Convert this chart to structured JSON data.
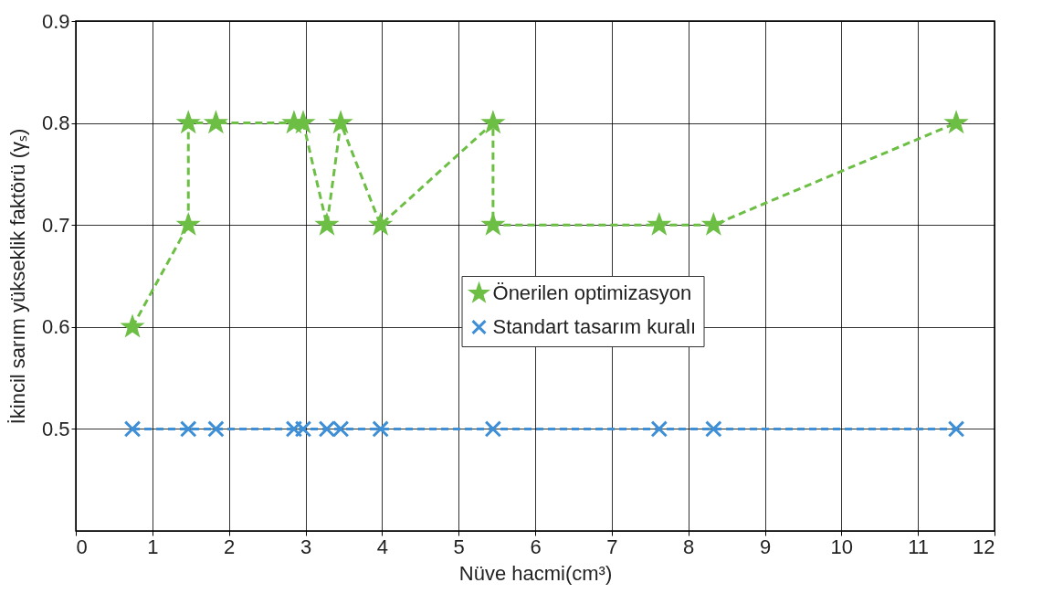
{
  "chart_data": {
    "type": "line",
    "xlabel": "Nüve hacmi(cm³)",
    "ylabel": "İkincil sarım yükseklik faktörü (γₛ)",
    "xlim": [
      0,
      12
    ],
    "xticks": [
      0,
      1,
      2,
      3,
      4,
      5,
      6,
      7,
      8,
      9,
      10,
      11,
      12
    ],
    "ylim": [
      0.4,
      0.9
    ],
    "yticks": [
      0.5,
      0.6,
      0.7,
      0.8,
      0.9
    ],
    "grid": true,
    "legend": "right",
    "line_style": "dashed",
    "series": [
      {
        "name": "Önerilen optimizasyon",
        "color": "#6cbf44",
        "marker": "star",
        "x": [
          0.74,
          1.47,
          1.47,
          1.83,
          2.85,
          2.97,
          3.28,
          3.46,
          3.98,
          5.45,
          5.45,
          7.62,
          8.33,
          11.5
        ],
        "values": [
          0.6,
          0.7,
          0.8,
          0.8,
          0.8,
          0.8,
          0.7,
          0.8,
          0.7,
          0.8,
          0.7,
          0.7,
          0.7,
          0.8
        ]
      },
      {
        "name": "Standart tasarım kuralı",
        "color": "#3f8fd6",
        "marker": "cross",
        "x": [
          0.74,
          1.47,
          1.83,
          2.85,
          2.97,
          3.28,
          3.46,
          3.98,
          5.45,
          7.62,
          8.33,
          11.5
        ],
        "values": [
          0.5,
          0.5,
          0.5,
          0.5,
          0.5,
          0.5,
          0.5,
          0.5,
          0.5,
          0.5,
          0.5,
          0.5
        ]
      }
    ]
  }
}
